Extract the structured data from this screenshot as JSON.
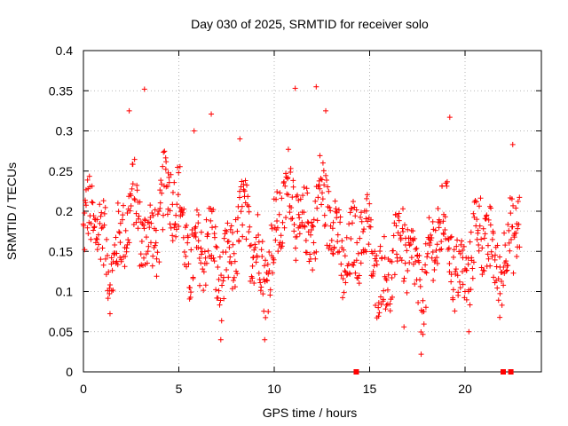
{
  "chart_data": {
    "type": "scatter",
    "title": "Day 030 of 2025, SRMTID for receiver solo",
    "xlabel": "GPS time / hours",
    "ylabel": "SRMTID / TECUs",
    "xlim": [
      0,
      24
    ],
    "ylim": [
      0,
      0.4
    ],
    "x_ticks": [
      0,
      5,
      10,
      15,
      20
    ],
    "x_tick_labels": [
      "0",
      "5",
      "10",
      "15",
      "20"
    ],
    "y_ticks": [
      0,
      0.05,
      0.1,
      0.15,
      0.2,
      0.25,
      0.3,
      0.35,
      0.4
    ],
    "y_tick_labels": [
      "0",
      "0.05",
      "0.1",
      "0.15",
      "0.2",
      "0.25",
      "0.3",
      "0.35",
      "0.4"
    ],
    "grid": true,
    "marker": "+",
    "color": "#ff0000",
    "series": [
      {
        "name": "SRMTID",
        "points_x_start": 0.0,
        "points_x_end": 22.9,
        "points_x_step": 0.05,
        "points_approx_y_range": [
          0.02,
          0.355
        ],
        "envelope_hours": [
          0,
          1,
          2,
          3,
          4,
          5,
          6,
          7,
          8,
          9,
          10,
          11,
          12,
          13,
          14,
          15,
          16,
          17,
          18,
          19,
          20,
          21,
          22,
          23
        ],
        "envelope_median": [
          0.17,
          0.16,
          0.17,
          0.18,
          0.2,
          0.2,
          0.15,
          0.12,
          0.18,
          0.14,
          0.17,
          0.2,
          0.2,
          0.18,
          0.16,
          0.14,
          0.14,
          0.13,
          0.14,
          0.16,
          0.14,
          0.15,
          0.16,
          0.16
        ]
      },
      {
        "name": "zero-markers",
        "points": [
          [
            14.3,
            0.0
          ],
          [
            22.0,
            0.0
          ],
          [
            22.4,
            0.0
          ]
        ]
      }
    ],
    "highlighted_points": [
      [
        3.2,
        0.352
      ],
      [
        11.1,
        0.353
      ],
      [
        12.2,
        0.355
      ],
      [
        6.7,
        0.321
      ],
      [
        19.2,
        0.317
      ],
      [
        8.2,
        0.29
      ],
      [
        2.4,
        0.325
      ],
      [
        12.7,
        0.325
      ],
      [
        7.2,
        0.04
      ],
      [
        9.5,
        0.04
      ],
      [
        17.7,
        0.022
      ],
      [
        22.5,
        0.283
      ],
      [
        20.2,
        0.05
      ],
      [
        5.8,
        0.3
      ],
      [
        16.8,
        0.056
      ]
    ]
  }
}
